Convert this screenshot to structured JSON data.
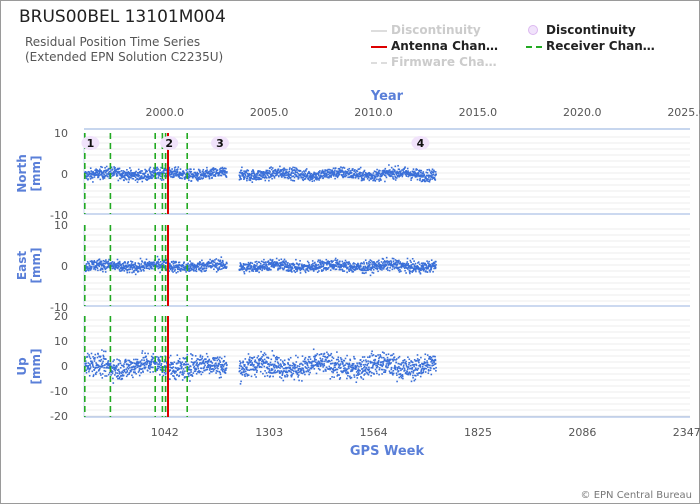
{
  "header": {
    "title": "BRUS00BEL 13101M004",
    "subtitle_line1": "Residual Position Time Series",
    "subtitle_line2": "(Extended EPN Solution C2235U)"
  },
  "legend": {
    "items": [
      {
        "label": "Discontinuity",
        "style": "line",
        "color": "#dddddd",
        "muted": true
      },
      {
        "label": "Discontinuity",
        "style": "dot",
        "color": "#dcb8f0",
        "muted": false
      },
      {
        "label": "Antenna Chan…",
        "style": "line",
        "color": "#dd0000",
        "muted": false
      },
      {
        "label": "Receiver Chan…",
        "style": "dash",
        "color": "#22aa22",
        "muted": false
      },
      {
        "label": "Firmware Cha…",
        "style": "dash",
        "color": "#dddddd",
        "muted": true
      }
    ]
  },
  "credit": "© EPN Central Bureau",
  "chart_data": {
    "type": "scatter",
    "x_top": {
      "label": "Year",
      "ticks": [
        "2000.0",
        "2005.0",
        "2010.0",
        "2015.0",
        "2020.0",
        "2025.0"
      ],
      "values": [
        2000.0,
        2005.0,
        2010.0,
        2015.0,
        2020.0,
        2025.0
      ]
    },
    "x_bottom": {
      "label": "GPS Week",
      "ticks": [
        "1042",
        "1303",
        "1564",
        "1825",
        "2086",
        "2347"
      ],
      "values": [
        1042,
        1303,
        1564,
        1825,
        2086,
        2347
      ]
    },
    "xlim_week": [
      840,
      2355
    ],
    "grid": true,
    "panels": [
      {
        "name": "North",
        "ylabel": "North\n[mm]",
        "ylim": [
          -10,
          10
        ],
        "yticks": [
          10,
          0,
          -10
        ],
        "noise_mm": 1.0
      },
      {
        "name": "East",
        "ylabel": "East\n[mm]",
        "ylim": [
          -10,
          10
        ],
        "yticks": [
          10,
          0,
          -10
        ],
        "noise_mm": 1.0
      },
      {
        "name": "Up",
        "ylabel": "Up\n[mm]",
        "ylim": [
          -20,
          20
        ],
        "yticks": [
          20,
          10,
          0,
          -10,
          -20
        ],
        "noise_mm": 3.2
      }
    ],
    "data_segments_week": [
      [
        842,
        1197
      ],
      [
        1228,
        1720
      ]
    ],
    "discontinuities": [
      {
        "label": "1",
        "week": 856
      },
      {
        "label": "2",
        "week": 1053
      },
      {
        "label": "3",
        "week": 1180
      },
      {
        "label": "4",
        "week": 1681
      }
    ],
    "antenna_changes_week": [
      1050
    ],
    "receiver_changes_week": [
      842,
      906,
      1018,
      1036,
      1044,
      1098
    ]
  }
}
